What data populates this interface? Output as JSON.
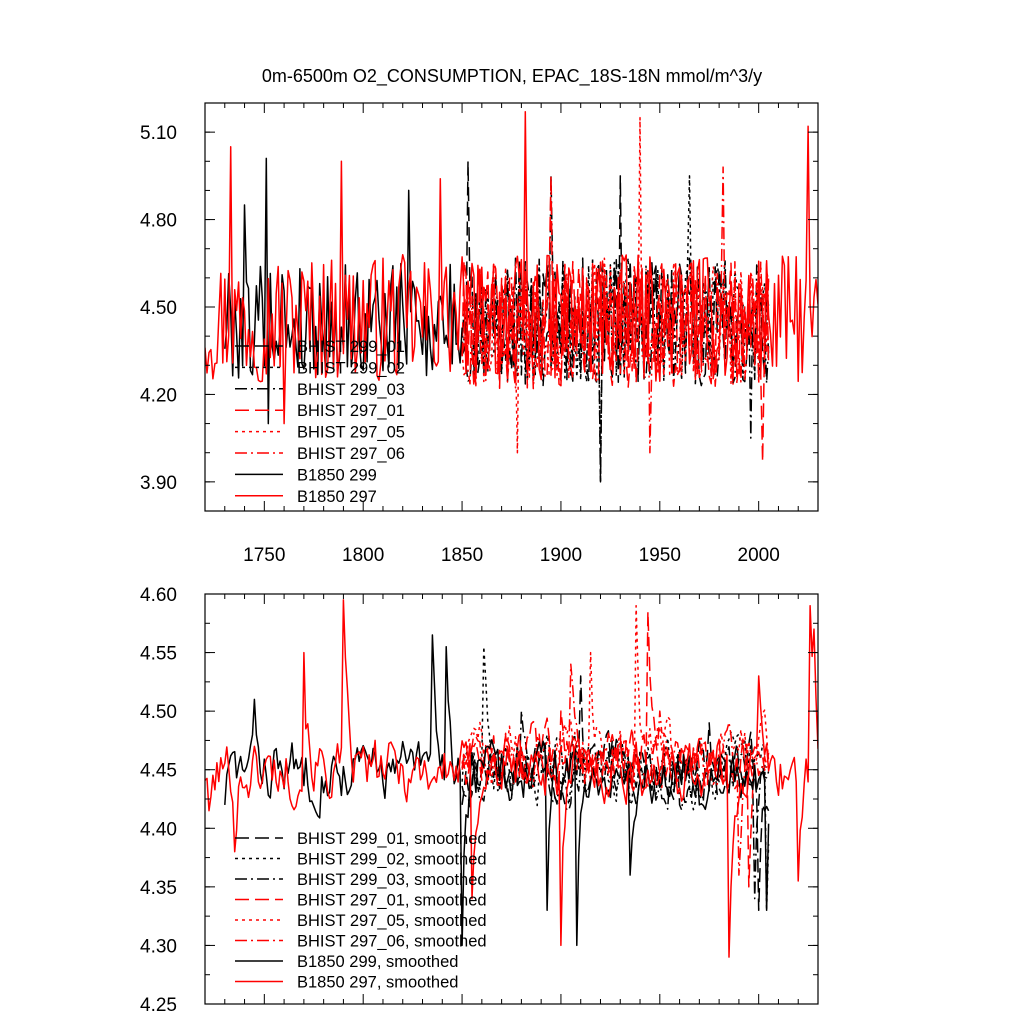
{
  "colors": {
    "black": "#000000",
    "red": "#ff0000"
  },
  "chart_data": [
    {
      "type": "line",
      "title": "0m-6500m O2_CONSUMPTION, EPAC_18S-18N  mmol/m^3/y",
      "xlabel": "",
      "ylabel": "",
      "xlim": [
        1720,
        2030
      ],
      "ylim": [
        3.8,
        5.2
      ],
      "x_ticks": [
        "1750",
        "1800",
        "1850",
        "1900",
        "1950",
        "2000"
      ],
      "y_ticks": [
        "3.90",
        "4.20",
        "4.50",
        "4.80",
        "5.10"
      ],
      "legend_position": "bottom-left",
      "series": [
        {
          "name": "BHIST 299_01",
          "color": "#000000",
          "dash": "longdash",
          "x_start": 1850,
          "x_end": 2005,
          "mean": 4.45,
          "amplitude": 0.22,
          "seed": 11,
          "points": [
            [
              1853,
              5.0
            ],
            [
              1920,
              3.9
            ],
            [
              1930,
              4.95
            ]
          ]
        },
        {
          "name": "BHIST 299_02",
          "color": "#000000",
          "dash": "dot",
          "x_start": 1850,
          "x_end": 2005,
          "mean": 4.45,
          "amplitude": 0.22,
          "seed": 23,
          "points": [
            [
              1920,
              3.9
            ],
            [
              1965,
              4.95
            ]
          ]
        },
        {
          "name": "BHIST 299_03",
          "color": "#000000",
          "dash": "dashdot",
          "x_start": 1850,
          "x_end": 2005,
          "mean": 4.45,
          "amplitude": 0.22,
          "seed": 37,
          "points": [
            [
              1895,
              4.95
            ],
            [
              1996,
              4.05
            ]
          ]
        },
        {
          "name": "BHIST 297_01",
          "color": "#ff0000",
          "dash": "longdash",
          "x_start": 1850,
          "x_end": 2005,
          "mean": 4.44,
          "amplitude": 0.22,
          "seed": 41,
          "points": [
            [
              1895,
              4.95
            ],
            [
              2002,
              3.97
            ]
          ]
        },
        {
          "name": "BHIST 297_05",
          "color": "#ff0000",
          "dash": "dot",
          "x_start": 1850,
          "x_end": 2005,
          "mean": 4.45,
          "amplitude": 0.22,
          "seed": 53,
          "points": [
            [
              1940,
              5.15
            ],
            [
              1878,
              4.0
            ]
          ]
        },
        {
          "name": "BHIST 297_06",
          "color": "#ff0000",
          "dash": "dashdot",
          "x_start": 1850,
          "x_end": 2005,
          "mean": 4.44,
          "amplitude": 0.22,
          "seed": 67,
          "points": [
            [
              1945,
              4.0
            ],
            [
              1982,
              4.98
            ]
          ]
        },
        {
          "name": "B1850 299",
          "color": "#000000",
          "dash": "solid",
          "x_start": 1730,
          "x_end": 1850,
          "mean": 4.45,
          "amplitude": 0.2,
          "seed": 79,
          "points": [
            [
              1751,
              5.01
            ],
            [
              1752,
              4.1
            ],
            [
              1740,
              4.85
            ],
            [
              1823,
              4.9
            ]
          ]
        },
        {
          "name": "B1850 297",
          "color": "#ff0000",
          "dash": "solid",
          "x_start": 1720,
          "x_end": 2030,
          "mean": 4.46,
          "amplitude": 0.22,
          "seed": 97,
          "points": [
            [
              1733,
              5.05
            ],
            [
              1882,
              5.17
            ],
            [
              2025,
              5.12
            ],
            [
              1760,
              4.1
            ],
            [
              1789,
              5.0
            ],
            [
              1839,
              4.94
            ]
          ]
        }
      ]
    },
    {
      "type": "line",
      "title": "",
      "xlabel": "",
      "ylabel": "",
      "xlim": [
        1720,
        2030
      ],
      "ylim": [
        4.25,
        4.6
      ],
      "x_ticks": [
        "",
        "",
        "",
        "",
        "",
        ""
      ],
      "y_ticks": [
        "4.25",
        "4.30",
        "4.35",
        "4.40",
        "4.45",
        "4.50",
        "4.55",
        "4.60"
      ],
      "legend_position": "bottom-left",
      "series": [
        {
          "name": "BHIST 299_01, smoothed",
          "color": "#000000",
          "dash": "longdash",
          "x_start": 1850,
          "x_end": 2005,
          "mean": 4.45,
          "amplitude": 0.045,
          "seed": 13,
          "points": [
            [
              1850,
              4.42
            ],
            [
              1910,
              4.53
            ],
            [
              1975,
              4.49
            ],
            [
              2000,
              4.33
            ]
          ]
        },
        {
          "name": "BHIST 299_02, smoothed",
          "color": "#000000",
          "dash": "dot",
          "x_start": 1850,
          "x_end": 2005,
          "mean": 4.45,
          "amplitude": 0.045,
          "seed": 29,
          "points": [
            [
              1861,
              4.555
            ],
            [
              1935,
              4.42
            ],
            [
              2004,
              4.33
            ]
          ]
        },
        {
          "name": "BHIST 299_03, smoothed",
          "color": "#000000",
          "dash": "dashdot",
          "x_start": 1850,
          "x_end": 2005,
          "mean": 4.445,
          "amplitude": 0.04,
          "seed": 43,
          "points": [
            [
              1880,
              4.5
            ],
            [
              1960,
              4.42
            ],
            [
              1998,
              4.34
            ]
          ]
        },
        {
          "name": "BHIST 297_01, smoothed",
          "color": "#ff0000",
          "dash": "longdash",
          "x_start": 1850,
          "x_end": 2005,
          "mean": 4.46,
          "amplitude": 0.045,
          "seed": 47,
          "points": [
            [
              1944,
              4.585
            ],
            [
              1900,
              4.5
            ],
            [
              1995,
              4.35
            ]
          ]
        },
        {
          "name": "BHIST 297_05, smoothed",
          "color": "#ff0000",
          "dash": "dot",
          "x_start": 1850,
          "x_end": 2005,
          "mean": 4.465,
          "amplitude": 0.045,
          "seed": 59,
          "points": [
            [
              1938,
              4.59
            ],
            [
              1915,
              4.55
            ],
            [
              1870,
              4.44
            ]
          ]
        },
        {
          "name": "BHIST 297_06, smoothed",
          "color": "#ff0000",
          "dash": "dashdot",
          "x_start": 1850,
          "x_end": 2005,
          "mean": 4.46,
          "amplitude": 0.04,
          "seed": 71,
          "points": [
            [
              1905,
              4.54
            ],
            [
              1950,
              4.5
            ],
            [
              1990,
              4.36
            ]
          ]
        },
        {
          "name": "B1850 299, smoothed",
          "color": "#000000",
          "dash": "solid",
          "x_start": 1730,
          "x_end": 2005,
          "mean": 4.45,
          "amplitude": 0.045,
          "seed": 83,
          "points": [
            [
              1730,
              4.42
            ],
            [
              1745,
              4.51
            ],
            [
              1835,
              4.565
            ],
            [
              1842,
              4.555
            ],
            [
              1850,
              4.3
            ],
            [
              1893,
              4.33
            ],
            [
              1908,
              4.3
            ],
            [
              1935,
              4.36
            ],
            [
              1970,
              4.42
            ],
            [
              2004,
              4.33
            ]
          ]
        },
        {
          "name": "B1850 297, smoothed",
          "color": "#ff0000",
          "dash": "solid",
          "x_start": 1720,
          "x_end": 2030,
          "mean": 4.45,
          "amplitude": 0.045,
          "seed": 101,
          "points": [
            [
              1722,
              4.415
            ],
            [
              1735,
              4.38
            ],
            [
              1770,
              4.55
            ],
            [
              1790,
              4.595
            ],
            [
              1855,
              4.34
            ],
            [
              1900,
              4.3
            ],
            [
              1985,
              4.29
            ],
            [
              2000,
              4.53
            ],
            [
              2020,
              4.355
            ],
            [
              2026,
              4.59
            ],
            [
              2028,
              4.57
            ]
          ]
        }
      ]
    }
  ]
}
